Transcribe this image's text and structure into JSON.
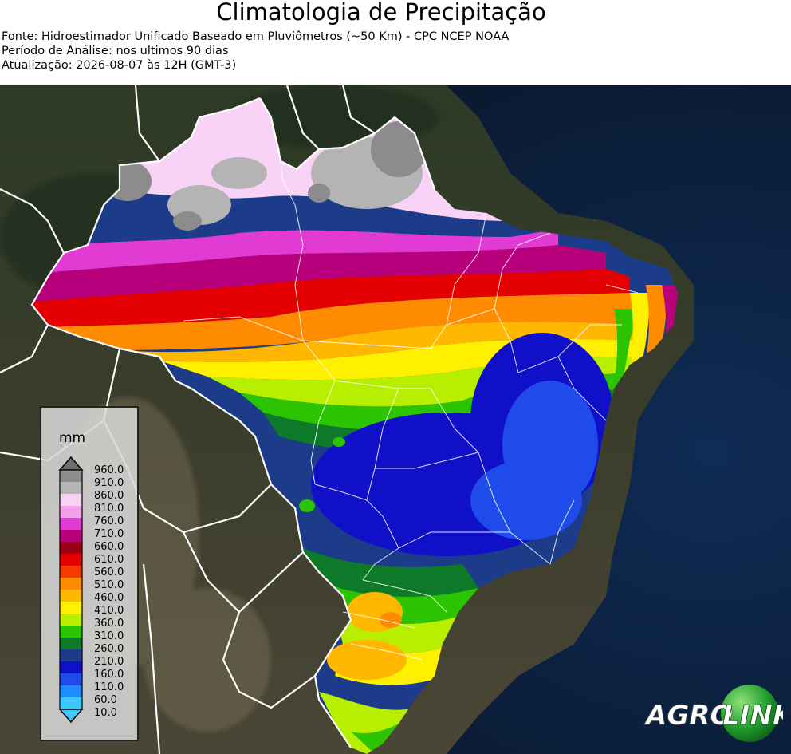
{
  "title": "Climatologia de Precipitação",
  "info": {
    "source": "Fonte: Hidroestimador Unificado Baseado em Pluviômetros (~50 Km) - CPC NCEP NOAA",
    "period": "Período de Análise: nos ultimos 90 dias",
    "update": "Atualização: 2026-08-07 às 12H (GMT-3)"
  },
  "legend": {
    "unit": "mm",
    "ticks": [
      "960.0",
      "910.0",
      "860.0",
      "810.0",
      "760.0",
      "710.0",
      "660.0",
      "610.0",
      "560.0",
      "510.0",
      "460.0",
      "410.0",
      "360.0",
      "310.0",
      "260.0",
      "210.0",
      "160.0",
      "110.0",
      "60.0",
      "10.0"
    ],
    "colors": [
      "#8c8c8c",
      "#b4b4b4",
      "#f9d3f6",
      "#f2a0ea",
      "#e23bd4",
      "#b8007d",
      "#9a0018",
      "#e40000",
      "#f53a00",
      "#ff8c00",
      "#ffb700",
      "#fff000",
      "#b8ef00",
      "#2cc400",
      "#0c7a28",
      "#1c3c8a",
      "#1010c8",
      "#1e4bea",
      "#1e8cff",
      "#3cc8ff"
    ]
  },
  "logo": {
    "left": "AGRO",
    "right": "LINK"
  },
  "colors": {
    "ocean": "#0b1a2e",
    "land": "#3a3a2c",
    "borders": "#ffffff"
  },
  "icons": {
    "legend_arrow_top": "triangle-up-icon",
    "legend_arrow_bottom": "triangle-down-icon",
    "logo_globe": "globe-icon"
  }
}
